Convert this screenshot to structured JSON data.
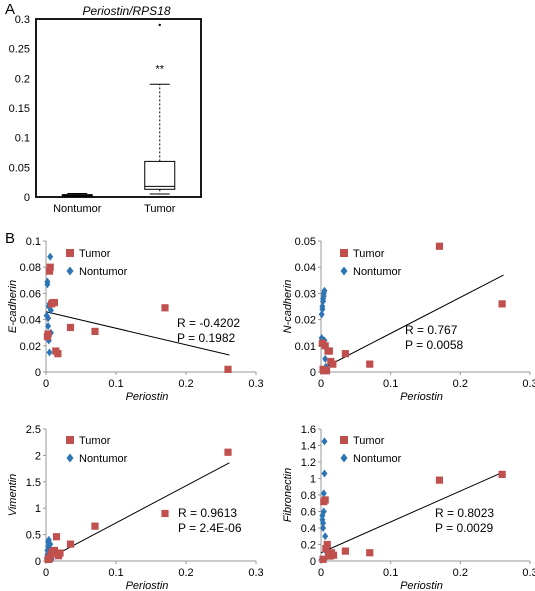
{
  "panel_labels": {
    "a": "A",
    "b": "B"
  },
  "colors": {
    "tumor": "#c0504d",
    "nontumor": "#2e75b6",
    "axis": "#999999",
    "line": "#000000"
  },
  "chart_data": [
    {
      "type": "box",
      "title": "Periostin/RPS18",
      "categories": [
        "Nontumor",
        "Tumor"
      ],
      "ylim": [
        0,
        0.3
      ],
      "yticks": [
        "0",
        "0.05",
        "0.1",
        "0.15",
        "0.2",
        "0.25",
        "0.3"
      ],
      "boxes": [
        {
          "name": "Nontumor",
          "min": 0.001,
          "q1": 0.002,
          "median": 0.003,
          "q3": 0.004,
          "max": 0.006,
          "outliers": []
        },
        {
          "name": "Tumor",
          "min": 0.005,
          "q1": 0.013,
          "median": 0.018,
          "q3": 0.06,
          "max": 0.19,
          "outliers": [
            0.29
          ]
        }
      ],
      "annotation": "**",
      "grid": false
    },
    {
      "type": "scatter",
      "xlabel": "Periostin",
      "ylabel": "E-cadherin",
      "xlim": [
        0,
        0.3
      ],
      "ylim": [
        0,
        0.1
      ],
      "xticks": [
        "0",
        "0.1",
        "0.2",
        "0.3"
      ],
      "yticks": [
        "0",
        "0.02",
        "0.04",
        "0.06",
        "0.08",
        "0.1"
      ],
      "legend": [
        "Tumor",
        "Nontumor"
      ],
      "legend_position": "top-left",
      "r_text": "R = -0.4202",
      "p_text": "P = 0.1982",
      "fit": [
        [
          0,
          0.046
        ],
        [
          0.262,
          0.013
        ]
      ],
      "series": [
        {
          "name": "Tumor",
          "marker": "square",
          "points": [
            [
              0.002,
              0.027
            ],
            [
              0.003,
              0.029
            ],
            [
              0.005,
              0.077
            ],
            [
              0.006,
              0.08
            ],
            [
              0.008,
              0.052
            ],
            [
              0.01,
              0.053
            ],
            [
              0.012,
              0.053
            ],
            [
              0.014,
              0.016
            ],
            [
              0.017,
              0.014
            ],
            [
              0.035,
              0.034
            ],
            [
              0.07,
              0.031
            ],
            [
              0.17,
              0.049
            ],
            [
              0.26,
              0.002
            ]
          ]
        },
        {
          "name": "Nontumor",
          "marker": "diamond",
          "points": [
            [
              0.001,
              0.043
            ],
            [
              0.002,
              0.067
            ],
            [
              0.002,
              0.069
            ],
            [
              0.003,
              0.035
            ],
            [
              0.003,
              0.041
            ],
            [
              0.004,
              0.05
            ],
            [
              0.004,
              0.024
            ],
            [
              0.005,
              0.015
            ],
            [
              0.005,
              0.052
            ],
            [
              0.006,
              0.088
            ],
            [
              0.007,
              0.03
            ],
            [
              0.007,
              0.047
            ]
          ]
        }
      ]
    },
    {
      "type": "scatter",
      "xlabel": "Periostin",
      "ylabel": "N-cadherin",
      "xlim": [
        0,
        0.3
      ],
      "ylim": [
        0,
        0.05
      ],
      "xticks": [
        "0",
        "0.1",
        "0.2",
        "0.3"
      ],
      "yticks": [
        "0",
        "0.01",
        "0.02",
        "0.03",
        "0.04",
        "0.05"
      ],
      "legend": [
        "Tumor",
        "Nontumor"
      ],
      "legend_position": "top-left",
      "r_text": "R = 0.767",
      "p_text": "P = 0.0058",
      "fit": [
        [
          0,
          0.001
        ],
        [
          0.262,
          0.037
        ]
      ],
      "series": [
        {
          "name": "Tumor",
          "marker": "square",
          "points": [
            [
              0.002,
              0.011
            ],
            [
              0.003,
              0.001
            ],
            [
              0.004,
              0.0005
            ],
            [
              0.006,
              0.01
            ],
            [
              0.008,
              0.0005
            ],
            [
              0.01,
              0.008
            ],
            [
              0.012,
              0.008
            ],
            [
              0.014,
              0.004
            ],
            [
              0.017,
              0.003
            ],
            [
              0.035,
              0.007
            ],
            [
              0.07,
              0.003
            ],
            [
              0.17,
              0.048
            ],
            [
              0.26,
              0.026
            ]
          ]
        },
        {
          "name": "Nontumor",
          "marker": "diamond",
          "points": [
            [
              0.001,
              0.013
            ],
            [
              0.001,
              0.022
            ],
            [
              0.002,
              0.024
            ],
            [
              0.002,
              0.025
            ],
            [
              0.003,
              0.027
            ],
            [
              0.003,
              0.028
            ],
            [
              0.004,
              0.029
            ],
            [
              0.004,
              0.03
            ],
            [
              0.005,
              0.031
            ],
            [
              0.005,
              0.012
            ],
            [
              0.006,
              0.005
            ],
            [
              0.007,
              0.002
            ]
          ]
        }
      ]
    },
    {
      "type": "scatter",
      "xlabel": "Periostin",
      "ylabel": "Vimentin",
      "xlim": [
        0,
        0.3
      ],
      "ylim": [
        0,
        2.5
      ],
      "xticks": [
        "0",
        "0.1",
        "0.2",
        "0.3"
      ],
      "yticks": [
        "0",
        "0.5",
        "1",
        "1.5",
        "2",
        "2.5"
      ],
      "legend": [
        "Tumor",
        "Nontumor"
      ],
      "legend_position": "top-left",
      "r_text": "R = 0.9613",
      "p_text": "P = 2.4E-06",
      "fit": [
        [
          0,
          0.02
        ],
        [
          0.262,
          1.86
        ]
      ],
      "series": [
        {
          "name": "Tumor",
          "marker": "square",
          "points": [
            [
              0.003,
              0.03
            ],
            [
              0.005,
              0.05
            ],
            [
              0.007,
              0.12
            ],
            [
              0.009,
              0.18
            ],
            [
              0.012,
              0.2
            ],
            [
              0.014,
              0.15
            ],
            [
              0.015,
              0.46
            ],
            [
              0.018,
              0.1
            ],
            [
              0.02,
              0.15
            ],
            [
              0.035,
              0.32
            ],
            [
              0.07,
              0.66
            ],
            [
              0.17,
              0.9
            ],
            [
              0.26,
              2.06
            ]
          ]
        },
        {
          "name": "Nontumor",
          "marker": "diamond",
          "points": [
            [
              0.001,
              0.05
            ],
            [
              0.002,
              0.12
            ],
            [
              0.002,
              0.2
            ],
            [
              0.003,
              0.28
            ],
            [
              0.003,
              0.36
            ],
            [
              0.004,
              0.4
            ],
            [
              0.004,
              0.15
            ],
            [
              0.005,
              0.08
            ],
            [
              0.005,
              0.25
            ],
            [
              0.006,
              0.32
            ],
            [
              0.007,
              0.18
            ],
            [
              0.008,
              0.03
            ]
          ]
        }
      ]
    },
    {
      "type": "scatter",
      "xlabel": "Periostin",
      "ylabel": "Fibronectin",
      "xlim": [
        0,
        0.3
      ],
      "ylim": [
        0,
        1.6
      ],
      "xticks": [
        "0",
        "0.1",
        "0.2",
        "0.3"
      ],
      "yticks": [
        "0",
        "0.2",
        "0.4",
        "0.6",
        "0.8",
        "1",
        "1.2",
        "1.4",
        "1.6"
      ],
      "legend": [
        "Tumor",
        "Nontumor"
      ],
      "legend_position": "top-left",
      "r_text": "R = 0.8023",
      "p_text": "P = 0.0029",
      "fit": [
        [
          0,
          0.1
        ],
        [
          0.262,
          1.08
        ]
      ],
      "series": [
        {
          "name": "Tumor",
          "marker": "square",
          "points": [
            [
              0.003,
              0.02
            ],
            [
              0.004,
              0.72
            ],
            [
              0.006,
              0.74
            ],
            [
              0.007,
              0.15
            ],
            [
              0.009,
              0.2
            ],
            [
              0.011,
              0.09
            ],
            [
              0.013,
              0.06
            ],
            [
              0.015,
              0.1
            ],
            [
              0.018,
              0.07
            ],
            [
              0.035,
              0.12
            ],
            [
              0.07,
              0.1
            ],
            [
              0.17,
              0.98
            ],
            [
              0.26,
              1.05
            ]
          ]
        },
        {
          "name": "Nontumor",
          "marker": "diamond",
          "points": [
            [
              0.001,
              0.02
            ],
            [
              0.002,
              0.5
            ],
            [
              0.002,
              0.55
            ],
            [
              0.003,
              0.46
            ],
            [
              0.003,
              0.4
            ],
            [
              0.004,
              0.6
            ],
            [
              0.004,
              0.82
            ],
            [
              0.005,
              1.06
            ],
            [
              0.005,
              1.45
            ],
            [
              0.006,
              0.3
            ],
            [
              0.007,
              0.12
            ],
            [
              0.008,
              0.05
            ]
          ]
        }
      ]
    }
  ]
}
